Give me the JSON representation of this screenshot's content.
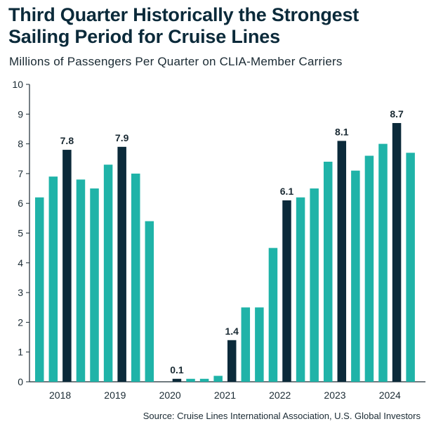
{
  "header": {
    "title_line1": "Third Quarter Historically the Strongest",
    "title_line2": "Sailing Period for Cruise Lines",
    "subtitle": "Millions of Passengers Per Quarter on CLIA-Member Carriers"
  },
  "footer": {
    "source": "Source: Cruise Lines International Association, U.S. Global Investors"
  },
  "colors": {
    "regular_quarter": "#1fb3a8",
    "third_quarter": "#0b2a3a",
    "axis": "#1a2a33",
    "label": "#1a2a33"
  },
  "chart_data": {
    "type": "bar",
    "title": "Third Quarter Historically the Strongest Sailing Period for Cruise Lines",
    "subtitle": "Millions of Passengers Per Quarter on CLIA-Member Carriers",
    "xlabel": "",
    "ylabel": "",
    "ylim": [
      0,
      10
    ],
    "yticks": [
      0,
      1,
      2,
      3,
      4,
      5,
      6,
      7,
      8,
      9,
      10
    ],
    "grid": false,
    "legend": "none",
    "years": [
      "2018",
      "2019",
      "2020",
      "2021",
      "2022",
      "2023",
      "2024"
    ],
    "categories": [
      "2018 Q1",
      "2018 Q2",
      "2018 Q3",
      "2018 Q4",
      "2019 Q1",
      "2019 Q2",
      "2019 Q3",
      "2019 Q4",
      "2020 Q1",
      "2020 Q2",
      "2020 Q3",
      "2020 Q4",
      "2021 Q1",
      "2021 Q2",
      "2021 Q3",
      "2021 Q4",
      "2022 Q1",
      "2022 Q2",
      "2022 Q3",
      "2022 Q4",
      "2023 Q1",
      "2023 Q2",
      "2023 Q3",
      "2023 Q4",
      "2024 Q1",
      "2024 Q2",
      "2024 Q3",
      "2024 Q4"
    ],
    "values": [
      6.2,
      6.9,
      7.8,
      6.8,
      6.5,
      7.3,
      7.9,
      7.0,
      5.4,
      null,
      0.1,
      0.1,
      0.1,
      0.2,
      1.4,
      2.5,
      2.5,
      4.5,
      6.1,
      6.2,
      6.5,
      7.4,
      8.1,
      7.1,
      7.6,
      8.0,
      8.7,
      7.7
    ],
    "highlight_quarter": 3,
    "data_labels": [
      "7.8",
      "7.9",
      "0.1",
      "1.4",
      "6.1",
      "8.1",
      "8.7"
    ]
  }
}
